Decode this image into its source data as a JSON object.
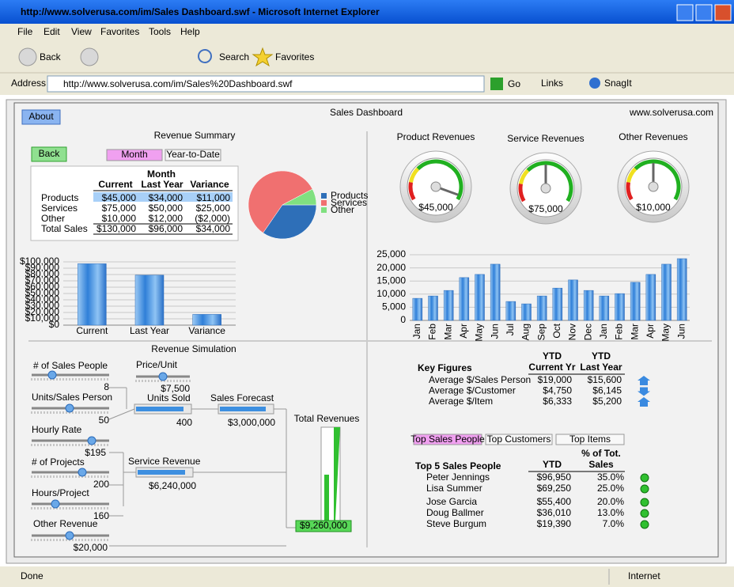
{
  "window": {
    "title": "http://www.solverusa.com/im/Sales Dashboard.swf - Microsoft Internet Explorer"
  },
  "menu": [
    "File",
    "Edit",
    "View",
    "Favorites",
    "Tools",
    "Help"
  ],
  "toolbar": {
    "back": "Back",
    "search": "Search",
    "favorites": "Favorites"
  },
  "address_bar": {
    "label": "Address",
    "url": "http://www.solverusa.com/im/Sales%20Dashboard.swf",
    "go": "Go",
    "links": "Links",
    "snagit": "SnagIt"
  },
  "status_bar": {
    "status": "Done",
    "zone": "Internet"
  },
  "dashboard": {
    "title": "Sales Dashboard",
    "site": "www.solverusa.com",
    "about": "About",
    "revenue_summary": {
      "title": "Revenue Summary",
      "back": "Back",
      "tabs": [
        "Month",
        "Year-to-Date"
      ],
      "period": "Month",
      "columns": [
        "Current",
        "Last Year",
        "Variance"
      ],
      "rows": [
        [
          "Products",
          "$45,000",
          "$34,000",
          "$11,000"
        ],
        [
          "Services",
          "$75,000",
          "$50,000",
          "$25,000"
        ],
        [
          "Other",
          "$10,000",
          "$12,000",
          "($2,000)"
        ],
        [
          "Total Sales",
          "$130,000",
          "$96,000",
          "$34,000"
        ]
      ]
    },
    "gauges": [
      {
        "title": "Product Revenues",
        "label": "$45,000"
      },
      {
        "title": "Service Revenues",
        "label": "$75,000"
      },
      {
        "title": "Other Revenues",
        "label": "$10,000"
      }
    ],
    "simulation": {
      "title": "Revenue Simulation",
      "inputs": [
        {
          "label": "# of Sales People",
          "value": "8"
        },
        {
          "label": "Units/Sales Person",
          "value": "50"
        },
        {
          "label": "Hourly Rate",
          "value": "$195"
        },
        {
          "label": "# of Projects",
          "value": "200"
        },
        {
          "label": "Hours/Project",
          "value": "160"
        },
        {
          "label": "Other Revenue",
          "value": "$20,000"
        },
        {
          "label": "Price/Unit",
          "value": "$7,500"
        }
      ],
      "outputs": [
        {
          "label": "Units Sold",
          "value": "400"
        },
        {
          "label": "Sales Forecast",
          "value": "$3,000,000"
        },
        {
          "label": "Service Revenue",
          "value": "$6,240,000"
        }
      ],
      "total": {
        "label": "Total Revenues",
        "value": "$9,260,000"
      }
    },
    "key_figures": {
      "title": "Key Figures",
      "columns": [
        [
          "YTD",
          "Current Yr"
        ],
        [
          "YTD",
          "Last Year"
        ]
      ],
      "rows": [
        [
          "Average $/Sales Person",
          "$19,000",
          "$15,600"
        ],
        [
          "Average $/Customer",
          "$4,750",
          "$6,145"
        ],
        [
          "Average $/Item",
          "$6,333",
          "$5,200"
        ]
      ]
    },
    "top_tabs": [
      "Top Sales People",
      "Top Customers",
      "Top Items"
    ],
    "top_people": {
      "title": "Top 5 Sales People",
      "ytd": "YTD",
      "share": [
        "% of Tot.",
        "Sales"
      ],
      "rows": [
        [
          "Peter Jennings",
          "$96,950",
          "35.0%"
        ],
        [
          "Lisa Summer",
          "$69,250",
          "25.0%"
        ],
        [
          "Jose Garcia",
          "$55,400",
          "20.0%"
        ],
        [
          "Doug Ballmer",
          "$36,010",
          "13.0%"
        ],
        [
          "Steve Burgum",
          "$19,390",
          "7.0%"
        ]
      ]
    }
  },
  "chart_data": [
    {
      "type": "pie",
      "categories": [
        "Products",
        "Services",
        "Other"
      ],
      "values": [
        45000,
        75000,
        10000
      ],
      "colors": [
        "#2e6fb8",
        "#f07070",
        "#80e080"
      ]
    },
    {
      "type": "bar",
      "categories": [
        "Current",
        "Last Year",
        "Variance"
      ],
      "values": [
        97000,
        79000,
        17000
      ],
      "color": "#3d8fe0",
      "ylim": [
        0,
        100000
      ],
      "yticks": [
        {
          "value": 0,
          "label": "$0"
        },
        {
          "value": 10000,
          "label": "$10,000"
        },
        {
          "value": 20000,
          "label": "$20,000"
        },
        {
          "value": 30000,
          "label": "$30,000"
        },
        {
          "value": 40000,
          "label": "$40,000"
        },
        {
          "value": 50000,
          "label": "$50,000"
        },
        {
          "value": 60000,
          "label": "$60,000"
        },
        {
          "value": 70000,
          "label": "$70,000"
        },
        {
          "value": 80000,
          "label": "$80,000"
        },
        {
          "value": 90000,
          "label": "$90,000"
        },
        {
          "value": 100000,
          "label": "$100,000"
        }
      ],
      "grid": true
    },
    {
      "type": "bar",
      "categories": [
        "Jan",
        "Feb",
        "Mar",
        "Apr",
        "May",
        "Jun",
        "Jul",
        "Aug",
        "Sep",
        "Oct",
        "Nov",
        "Dec",
        "Jan",
        "Feb",
        "Mar",
        "Apr",
        "May",
        "Jun"
      ],
      "values": [
        8400,
        9300,
        11400,
        16300,
        17500,
        21400,
        7200,
        6300,
        9300,
        12300,
        15400,
        11400,
        9300,
        10200,
        14500,
        17500,
        21400,
        23500
      ],
      "color": "#3d8fe0",
      "ylim": [
        0,
        25000
      ],
      "yticks": [
        0,
        {
          "value": 5000,
          "label": "5,000"
        },
        {
          "value": 10000,
          "label": "10,000"
        },
        {
          "value": 15000,
          "label": "15,000"
        },
        {
          "value": 20000,
          "label": "20,000"
        },
        {
          "value": 25000,
          "label": "25,000"
        }
      ],
      "grid": true
    }
  ]
}
